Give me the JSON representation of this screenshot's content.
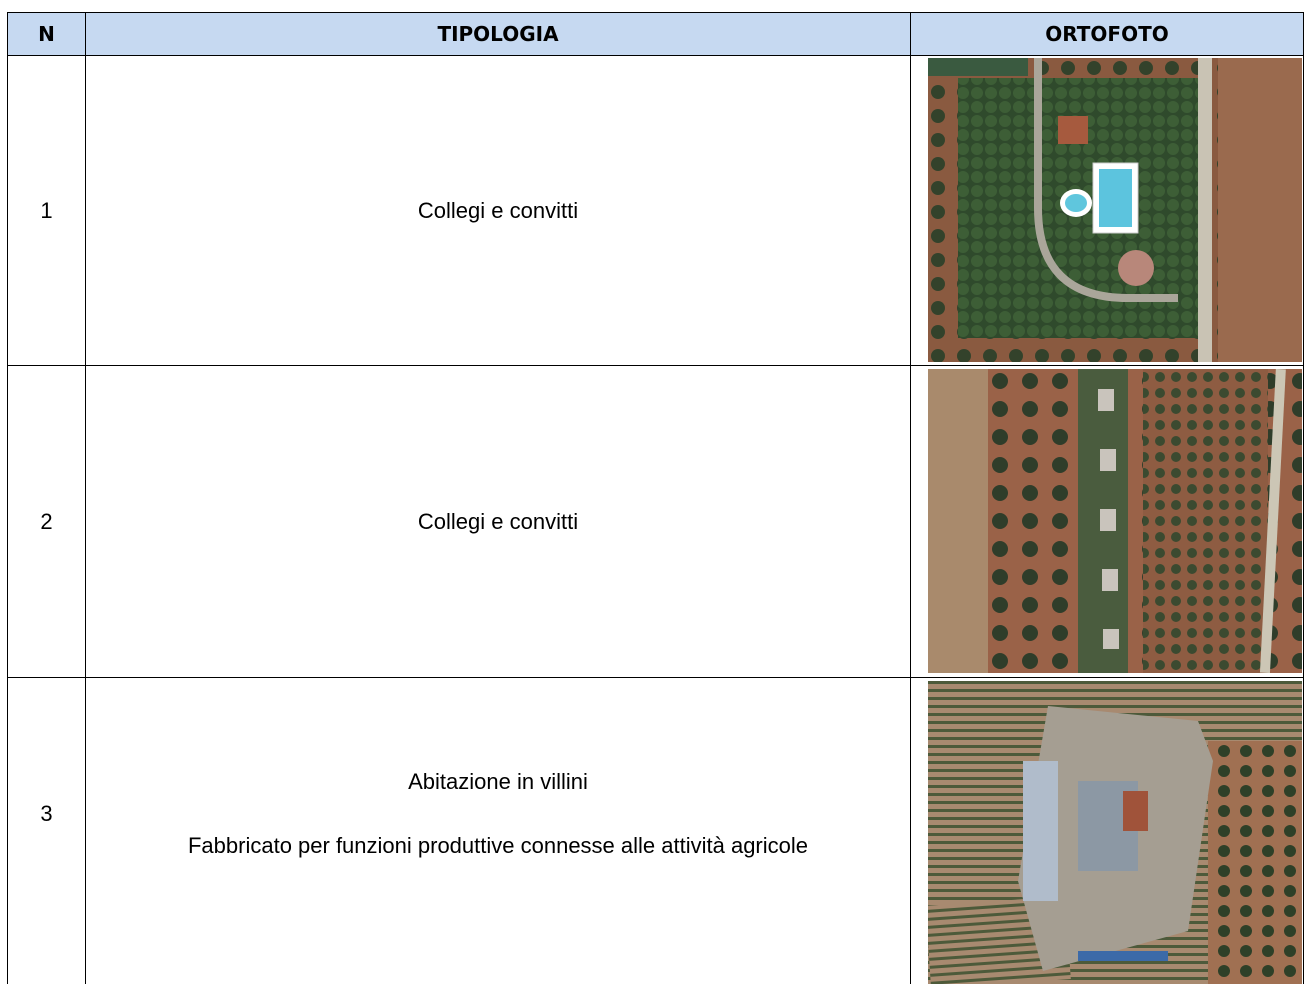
{
  "header": {
    "columns": [
      "N",
      "TIPOLOGIA",
      "ORTOFOTO"
    ]
  },
  "rows": [
    {
      "n": "1",
      "tipologia": [
        "Collegi e convitti"
      ]
    },
    {
      "n": "2",
      "tipologia": [
        "Collegi e convitti"
      ]
    },
    {
      "n": "3",
      "tipologia": [
        "Abitazione in villini",
        "Fabbricato per funzioni produttive connesse alle attività agricole"
      ]
    }
  ]
}
